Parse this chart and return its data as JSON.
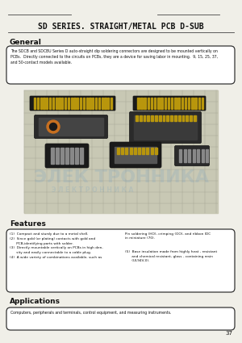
{
  "bg_color": "#f0efe8",
  "title": "SD SERIES. STRAIGHT/METAL PCB D-SUB",
  "title_fontsize": 7.0,
  "header_line_color": "#444444",
  "section_general": "General",
  "general_text": "The SDCB and SDCBU Series D auto-straight dip soldering connectors are designed to be mounted vertically on\nPCBs.  Directly connected to the circuits on PCBs, they are a device for saving labor in mounting.  9, 15, 25, 37,\nand 50-contact models available.",
  "section_features": "Features",
  "features_left_1": "(1)  Compact and sturdy due to a metal shell.",
  "features_left_2": "(2)  Since gold (or plating) contacts with gold and\n      PCB-identifying parts with solder.",
  "features_left_3": "(3)  Directly mountable vertically on PCBs in high den-\n      sity and easily connectable to a cable plug.",
  "features_left_4": "(4)  A wide variety of combinations available, such as",
  "features_right_top": "Pin soldering (HO), crimping (OO), and ribbon IDC\nin miniature (70).",
  "features_right_bottom": "(5)  Base insulation made from highly heat - resistant\n      and chemical resistant, glass - containing resin\n      (UL94V-0).",
  "section_applications": "Applications",
  "applications_text": "Computers, peripherals and terminals, control equipment, and measuring instruments.",
  "page_number": "37",
  "box_edge_color": "#333333",
  "box_fill_color": "#ffffff",
  "text_color": "#111111",
  "small_fontsize": 3.8,
  "section_fontsize": 6.5,
  "grid_bg": "#c8c8b4",
  "grid_line": "#aaa898",
  "connector_dark": "#1a1a1a",
  "connector_gold": "#b8960c",
  "connector_mid": "#444444",
  "connector_gray": "#888888",
  "connector_orange": "#c87020",
  "watermark_color": "#5090c8",
  "watermark_alpha": 0.15
}
